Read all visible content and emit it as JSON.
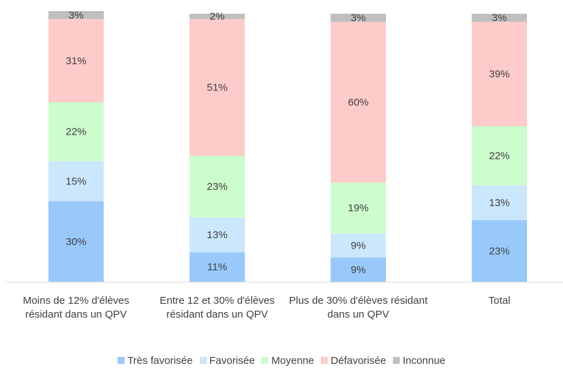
{
  "chart_data": {
    "type": "stacked_bar",
    "categories": [
      "Moins de 12% d'élèves résidant dans un QPV",
      "Entre 12 et 30% d'élèves résidant dans un QPV",
      "Plus de 30% d'élèves résidant dans un QPV",
      "Total"
    ],
    "series": [
      {
        "name": "Très favorisée",
        "color": "#99c9fb",
        "values": [
          30,
          11,
          9,
          23
        ],
        "value_labels": [
          "30%",
          "11%",
          "9%",
          "23%"
        ]
      },
      {
        "name": "Favorisée",
        "color": "#cbe7fd",
        "values": [
          15,
          13,
          9,
          13
        ],
        "value_labels": [
          "15%",
          "13%",
          "9%",
          "13%"
        ]
      },
      {
        "name": "Moyenne",
        "color": "#ccfdcc",
        "values": [
          22,
          23,
          19,
          22
        ],
        "value_labels": [
          "22%",
          "23%",
          "19%",
          "22%"
        ]
      },
      {
        "name": "Défavorisée",
        "color": "#fecbcb",
        "values": [
          31,
          51,
          60,
          39
        ],
        "value_labels": [
          "31%",
          "51%",
          "60%",
          "39%"
        ]
      },
      {
        "name": "Inconnue",
        "color": "#bfbfbf",
        "values": [
          3,
          2,
          3,
          3
        ],
        "value_labels": [
          "3%",
          "2%",
          "3%",
          "3%"
        ]
      }
    ],
    "legend": "bottom"
  }
}
